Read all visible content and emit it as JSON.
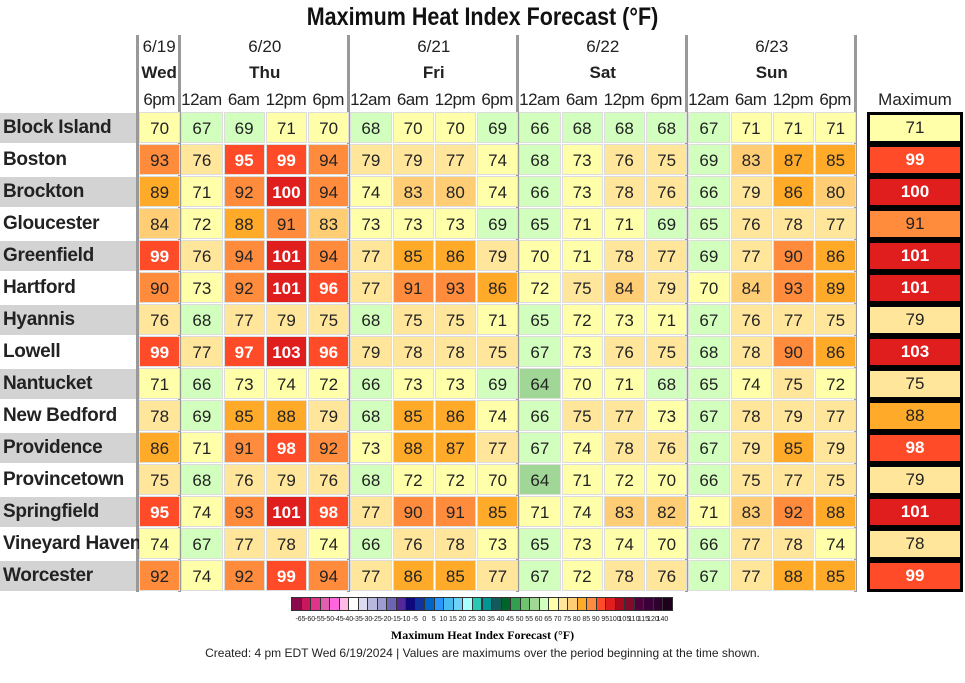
{
  "title": "Maximum Heat Index Forecast (°F)",
  "chart_data": {
    "type": "table",
    "title": "Maximum Heat Index Forecast (°F)",
    "day_groups": [
      {
        "date": "6/19",
        "day": "Wed",
        "times": [
          "6pm"
        ]
      },
      {
        "date": "6/20",
        "day": "Thu",
        "times": [
          "12am",
          "6am",
          "12pm",
          "6pm"
        ]
      },
      {
        "date": "6/21",
        "day": "Fri",
        "times": [
          "12am",
          "6am",
          "12pm",
          "6pm"
        ]
      },
      {
        "date": "6/22",
        "day": "Sat",
        "times": [
          "12am",
          "6am",
          "12pm",
          "6pm"
        ]
      },
      {
        "date": "6/23",
        "day": "Sun",
        "times": [
          "12am",
          "6am",
          "12pm",
          "6pm"
        ]
      }
    ],
    "max_header": "Maximum",
    "rows": [
      {
        "location": "Block Island",
        "values": [
          70,
          67,
          69,
          71,
          70,
          68,
          70,
          70,
          69,
          66,
          68,
          68,
          68,
          67,
          71,
          71,
          71
        ],
        "max": 71
      },
      {
        "location": "Boston",
        "values": [
          93,
          76,
          95,
          99,
          94,
          79,
          79,
          77,
          74,
          68,
          73,
          76,
          75,
          69,
          83,
          87,
          85
        ],
        "max": 99
      },
      {
        "location": "Brockton",
        "values": [
          89,
          71,
          92,
          100,
          94,
          74,
          83,
          80,
          74,
          66,
          73,
          78,
          76,
          66,
          79,
          86,
          80
        ],
        "max": 100
      },
      {
        "location": "Gloucester",
        "values": [
          84,
          72,
          88,
          91,
          83,
          73,
          73,
          73,
          69,
          65,
          71,
          71,
          69,
          65,
          76,
          78,
          77
        ],
        "max": 91
      },
      {
        "location": "Greenfield",
        "values": [
          99,
          76,
          94,
          101,
          94,
          77,
          85,
          86,
          79,
          70,
          71,
          78,
          77,
          69,
          77,
          90,
          86
        ],
        "max": 101
      },
      {
        "location": "Hartford",
        "values": [
          90,
          73,
          92,
          101,
          96,
          77,
          91,
          93,
          86,
          72,
          75,
          84,
          79,
          70,
          84,
          93,
          89
        ],
        "max": 101
      },
      {
        "location": "Hyannis",
        "values": [
          76,
          68,
          77,
          79,
          75,
          68,
          75,
          75,
          71,
          65,
          72,
          73,
          71,
          67,
          76,
          77,
          75
        ],
        "max": 79
      },
      {
        "location": "Lowell",
        "values": [
          99,
          77,
          97,
          103,
          96,
          79,
          78,
          78,
          75,
          67,
          73,
          76,
          75,
          68,
          78,
          90,
          86
        ],
        "max": 103
      },
      {
        "location": "Nantucket",
        "values": [
          71,
          66,
          73,
          74,
          72,
          66,
          73,
          73,
          69,
          64,
          70,
          71,
          68,
          65,
          74,
          75,
          72
        ],
        "max": 75
      },
      {
        "location": "New Bedford",
        "values": [
          78,
          69,
          85,
          88,
          79,
          68,
          85,
          86,
          74,
          66,
          75,
          77,
          73,
          67,
          78,
          79,
          77
        ],
        "max": 88
      },
      {
        "location": "Providence",
        "values": [
          86,
          71,
          91,
          98,
          92,
          73,
          88,
          87,
          77,
          67,
          74,
          78,
          76,
          67,
          79,
          85,
          79
        ],
        "max": 98
      },
      {
        "location": "Provincetown",
        "values": [
          75,
          68,
          76,
          79,
          76,
          68,
          72,
          72,
          70,
          64,
          71,
          72,
          70,
          66,
          75,
          77,
          75
        ],
        "max": 79
      },
      {
        "location": "Springfield",
        "values": [
          95,
          74,
          93,
          101,
          98,
          77,
          90,
          91,
          85,
          71,
          74,
          83,
          82,
          71,
          83,
          92,
          88
        ],
        "max": 101
      },
      {
        "location": "Vineyard Haven",
        "values": [
          74,
          67,
          77,
          78,
          74,
          66,
          76,
          78,
          73,
          65,
          73,
          74,
          70,
          66,
          77,
          78,
          74
        ],
        "max": 78
      },
      {
        "location": "Worcester",
        "values": [
          92,
          74,
          92,
          99,
          94,
          77,
          86,
          85,
          77,
          67,
          72,
          78,
          76,
          67,
          77,
          88,
          85
        ],
        "max": 99
      }
    ],
    "legend": {
      "title": "Maximum Heat Index Forecast (°F)",
      "ticks": [
        "-65",
        "-60",
        "-55",
        "-50",
        "-45",
        "-40",
        "-35",
        "-30",
        "-25",
        "-20",
        "-15",
        "-10",
        "-5",
        "0",
        "5",
        "10",
        "15",
        "20",
        "25",
        "30",
        "35",
        "40",
        "45",
        "50",
        "55",
        "60",
        "65",
        "70",
        "75",
        "80",
        "85",
        "90",
        "95",
        "100",
        "105",
        "110",
        "115",
        "120",
        "140"
      ],
      "colors": [
        "#8b0a4b",
        "#c8175d",
        "#e0338a",
        "#e05fb0",
        "#ff66dd",
        "#ffbbe6",
        "#ffffff",
        "#dcdcf0",
        "#b8b8dc",
        "#9c9cce",
        "#6e64b4",
        "#55289a",
        "#0e0a7e",
        "#10329c",
        "#0064c8",
        "#2896ff",
        "#46bcf0",
        "#6ed2f8",
        "#aaffff",
        "#28c8b4",
        "#009696",
        "#145a5a",
        "#006428",
        "#32a050",
        "#6ec36e",
        "#a0d796",
        "#d2ffbe",
        "#ffffaa",
        "#ffe69b",
        "#ffcd73",
        "#ffaa28",
        "#ff8c3c",
        "#ff4b28",
        "#e11e1e",
        "#aa0a1e",
        "#820a2a",
        "#50003c",
        "#3a0038",
        "#2d002d",
        "#1e001e"
      ]
    }
  },
  "footer": "Created: 4 pm EDT Wed 6/19/2024  |  Values are maximums over the period beginning at the time shown."
}
